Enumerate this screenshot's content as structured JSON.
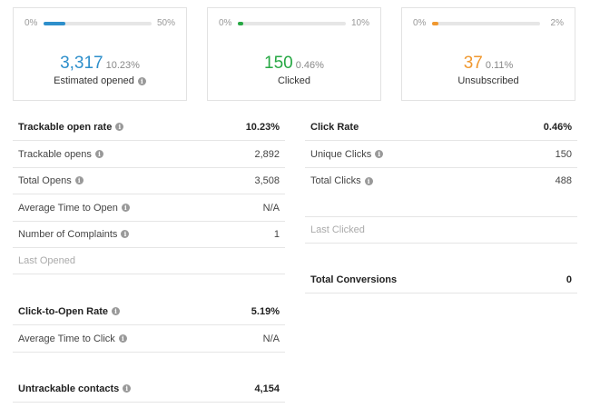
{
  "cards": [
    {
      "min": "0%",
      "max": "50%",
      "value": "3,317",
      "percent": "10.23%",
      "label": "Estimated opened",
      "fill_fraction": 0.2046,
      "color": "#2e8fcb",
      "info": true
    },
    {
      "min": "0%",
      "max": "10%",
      "value": "150",
      "percent": "0.46%",
      "label": "Clicked",
      "fill_fraction": 0.046,
      "color": "#27a844"
    },
    {
      "min": "0%",
      "max": "2%",
      "value": "37",
      "percent": "0.11%",
      "label": "Unsubscribed",
      "fill_fraction": 0.055,
      "color": "#f0982f"
    }
  ],
  "left": [
    {
      "label": "Trackable open rate",
      "value": "10.23%"
    },
    {
      "label": "Trackable opens",
      "value": "2,892"
    },
    {
      "label": "Total Opens",
      "value": "3,508"
    },
    {
      "label": "Average Time to Open",
      "value": "N/A"
    },
    {
      "label": "Number of Complaints",
      "value": "1"
    },
    {
      "label": "Last Opened",
      "value": ""
    },
    {
      "label": "Click-to-Open Rate",
      "value": "5.19%"
    },
    {
      "label": "Average Time to Click",
      "value": "N/A"
    },
    {
      "label": "Untrackable contacts",
      "value": "4,154"
    }
  ],
  "right": [
    {
      "label": "Click Rate",
      "value": "0.46%"
    },
    {
      "label": "Unique Clicks",
      "value": "150"
    },
    {
      "label": "Total Clicks",
      "value": "488"
    },
    {
      "label": "Last Clicked",
      "value": ""
    },
    {
      "label": "Total Conversions",
      "value": "0"
    }
  ]
}
